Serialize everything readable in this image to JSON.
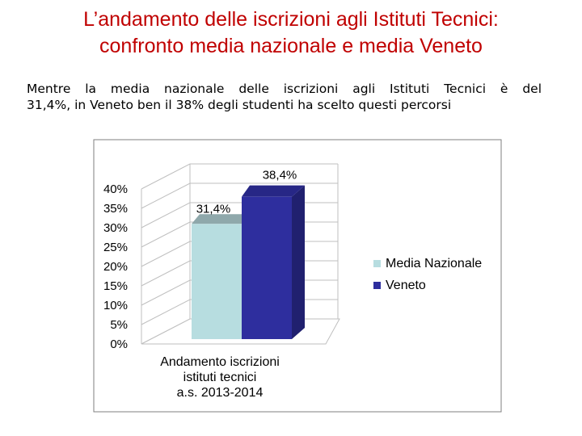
{
  "slide": {
    "title_line1": "L’andamento delle iscrizioni agli Istituti Tecnici:",
    "title_line2": "confronto media nazionale e media Veneto",
    "text_line1": "Mentre la media nazionale delle iscrizioni agli Istituti Tecnici è del",
    "text_line2": "31,4%, in Veneto ben il 38% degli studenti ha scelto questi percorsi"
  },
  "chart_data": {
    "type": "bar",
    "categories": [
      "Andamento iscrizioni istituti tecnici a.s. 2013-2014"
    ],
    "xlabel_lines": [
      "Andamento iscrizioni",
      "istituti tecnici",
      "a.s. 2013-2014"
    ],
    "series": [
      {
        "name": "Media Nazionale",
        "values": [
          31.4
        ],
        "data_label": "31,4%",
        "color": "#b7dde0"
      },
      {
        "name": "Veneto",
        "values": [
          38.4
        ],
        "data_label": "38,4%",
        "color": "#2e2e9e"
      }
    ],
    "ylim": [
      0,
      40
    ],
    "yticks": [
      0,
      5,
      10,
      15,
      20,
      25,
      30,
      35,
      40
    ],
    "ytick_labels": [
      "0%",
      "5%",
      "10%",
      "15%",
      "20%",
      "25%",
      "30%",
      "35%",
      "40%"
    ],
    "grid": true,
    "legend_position": "right",
    "style": "3d-column"
  }
}
